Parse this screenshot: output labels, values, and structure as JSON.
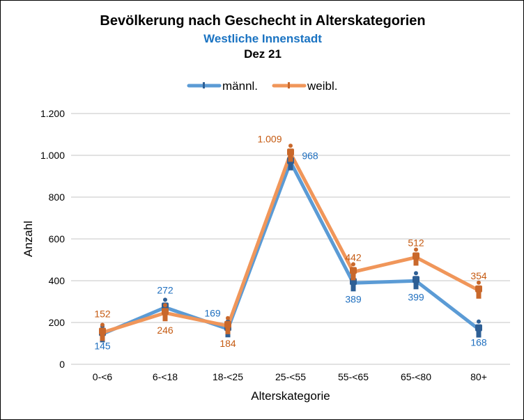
{
  "chart_data": {
    "type": "line",
    "title": "Bevölkerung nach Geschecht in Alterskategorien",
    "subtitle": "Westliche Innenstadt",
    "subtitle2": "Dez 21",
    "xlabel": "Alterskategorie",
    "ylabel": "Anzahl",
    "categories": [
      "0-<6",
      "6-<18",
      "18-<25",
      "25-<55",
      "55-<65",
      "65-<80",
      "80+"
    ],
    "ylim": [
      0,
      1200
    ],
    "yticks": [
      0,
      200,
      400,
      600,
      800,
      1000,
      1200
    ],
    "ytick_labels": [
      "0",
      "200",
      "400",
      "600",
      "800",
      "1.000",
      "1.200"
    ],
    "grid": true,
    "legend": "top",
    "series": [
      {
        "name": "männl.",
        "color": "#5b9bd5",
        "label_color": "#1f6fbf",
        "marker_color": "#2e5f95",
        "values": [
          145,
          272,
          169,
          968,
          389,
          399,
          168
        ],
        "labels": [
          "145",
          "272",
          "169",
          "968",
          "389",
          "399",
          "168"
        ]
      },
      {
        "name": "weibl.",
        "color": "#f0965a",
        "label_color": "#c55a11",
        "marker_color": "#c9682b",
        "values": [
          152,
          246,
          184,
          1009,
          442,
          512,
          354
        ],
        "labels": [
          "152",
          "246",
          "184",
          "1.009",
          "442",
          "512",
          "354"
        ]
      }
    ]
  }
}
